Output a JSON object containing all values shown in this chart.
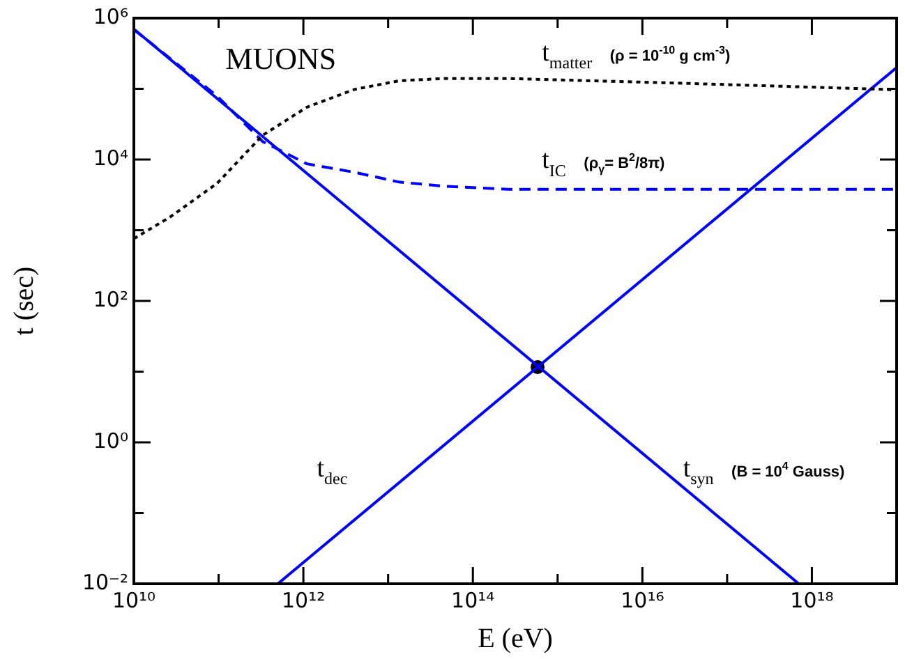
{
  "chart_data": {
    "type": "line",
    "title": "MUONS",
    "xlabel": "E (eV)",
    "ylabel": "t (sec)",
    "log": "xy",
    "grid": false,
    "xlim": [
      10000000000.0,
      1e+19
    ],
    "ylim": [
      0.01,
      1000000.0
    ],
    "xticks": [
      {
        "value": 10000000000.0,
        "label": "10¹⁰"
      },
      {
        "value": 100000000000.0,
        "label": null
      },
      {
        "value": 1000000000000.0,
        "label": "10¹²"
      },
      {
        "value": 10000000000000.0,
        "label": null
      },
      {
        "value": 100000000000000.0,
        "label": "10¹⁴"
      },
      {
        "value": 1000000000000000.0,
        "label": null
      },
      {
        "value": 1e+16,
        "label": "10¹⁶"
      },
      {
        "value": 1e+17,
        "label": null
      },
      {
        "value": 1e+18,
        "label": "10¹⁸"
      },
      {
        "value": 1e+19,
        "label": null
      }
    ],
    "yticks": [
      {
        "value": 0.01,
        "label": "10⁻²"
      },
      {
        "value": 0.1,
        "label": null
      },
      {
        "value": 1,
        "label": "10⁰"
      },
      {
        "value": 10,
        "label": null
      },
      {
        "value": 100,
        "label": "10²"
      },
      {
        "value": 1000,
        "label": null
      },
      {
        "value": 10000,
        "label": "10⁴"
      },
      {
        "value": 100000,
        "label": null
      },
      {
        "value": 1000000,
        "label": "10⁶"
      }
    ],
    "series": [
      {
        "name": "t$_{matter}$ (ρ = 10$^{-10}$ g cm$^{-3}$)",
        "color": "#000000",
        "line_style": "dotted",
        "marker": "none",
        "x": [
          10000000000.0,
          27000000000.0,
          96000000000.0,
          330000000000.0,
          1100000000000.0,
          4000000000000.0,
          13500000000000.0,
          46000000000000.0,
          260000000000000.0,
          2.9e+16,
          7.8e+18,
          1e+19
        ],
        "values": [
          760,
          1550,
          4600,
          22000,
          55000,
          98000,
          130000,
          140000,
          140000,
          120000,
          98000,
          95000
        ]
      },
      {
        "name": "t$_{IC}$ (ρ$_{γ}$= B$^{2}$/8π)",
        "color": "#0000ff",
        "line_style": "dashed",
        "marker": "none",
        "x": [
          10000000000.0,
          96000000000.0,
          330000000000.0,
          1100000000000.0,
          4000000000000.0,
          13500000000000.0,
          46000000000000.0,
          260000000000000.0,
          1e+19
        ],
        "values": [
          690000,
          79000,
          18000,
          8700,
          6600,
          4800,
          4200,
          3800,
          3800
        ]
      },
      {
        "name": "t$_{dec}$",
        "color": "#0000ff",
        "line_style": "solid",
        "marker": "none",
        "x": [
          500000000000.0,
          1e+19
        ],
        "values": [
          0.01,
          200000
        ]
      },
      {
        "name": "t$_{syn}$ (B = 10$^{4}$ Gauss)",
        "color": "#0000ff",
        "line_style": "solid",
        "marker": "none",
        "x": [
          10000000000.0,
          7e+17
        ],
        "values": [
          700000,
          0.01
        ]
      },
      {
        "type": "scatter",
        "color": "#000000",
        "marker": "circle",
        "x": [
          580000000000000.0
        ],
        "values": [
          11.6
        ]
      }
    ]
  }
}
